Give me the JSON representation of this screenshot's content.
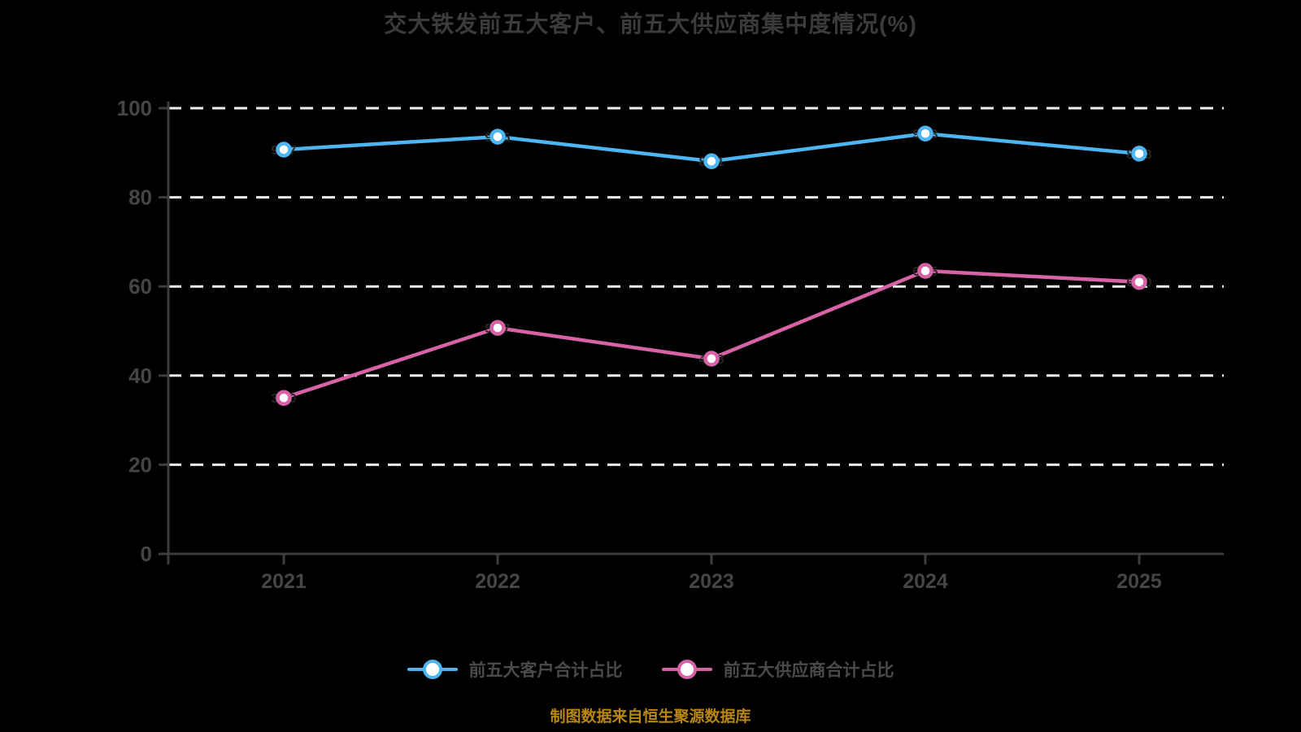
{
  "chart_data": {
    "type": "line",
    "title": "交大铁发前五大客户、前五大供应商集中度情况(%)",
    "categories": [
      "2021",
      "2022",
      "2023",
      "2024",
      "2025"
    ],
    "series": [
      {
        "name": "前五大客户合计占比",
        "slug": "customers",
        "color": "#4db5f2",
        "values": [
          90.7,
          93.6,
          88.1,
          94.3,
          89.8
        ],
        "point_labels": [
          "90.7",
          "93.6",
          "88.1",
          "94.3",
          "89.8"
        ]
      },
      {
        "name": "前五大供应商合计占比",
        "slug": "suppliers",
        "color": "#d763a6",
        "values": [
          35.0,
          50.7,
          43.8,
          63.5,
          61.0
        ],
        "point_labels": [
          "35.0",
          "50.7",
          "43.8",
          "63.5",
          "61.0"
        ]
      }
    ],
    "xlabel": "",
    "ylabel": "",
    "ylim": [
      0,
      100
    ],
    "yticks": [
      0,
      20,
      40,
      60,
      80,
      100
    ],
    "grid": "dashed-horizontal",
    "legend_position": "bottom",
    "marker": "circle-white-fill"
  },
  "footer": {
    "source_note": "制图数据来自恒生聚源数据库"
  },
  "colors": {
    "background": "#000000",
    "title_text": "#3b3b3b",
    "axis": "#3d3d3d",
    "tick_text": "#454545",
    "gridline": "#f0f0f0",
    "legend_text": "#4a4a4a",
    "footer_text": "#b8860b",
    "point_label": "#262626",
    "marker_fill": "#ffffff"
  }
}
